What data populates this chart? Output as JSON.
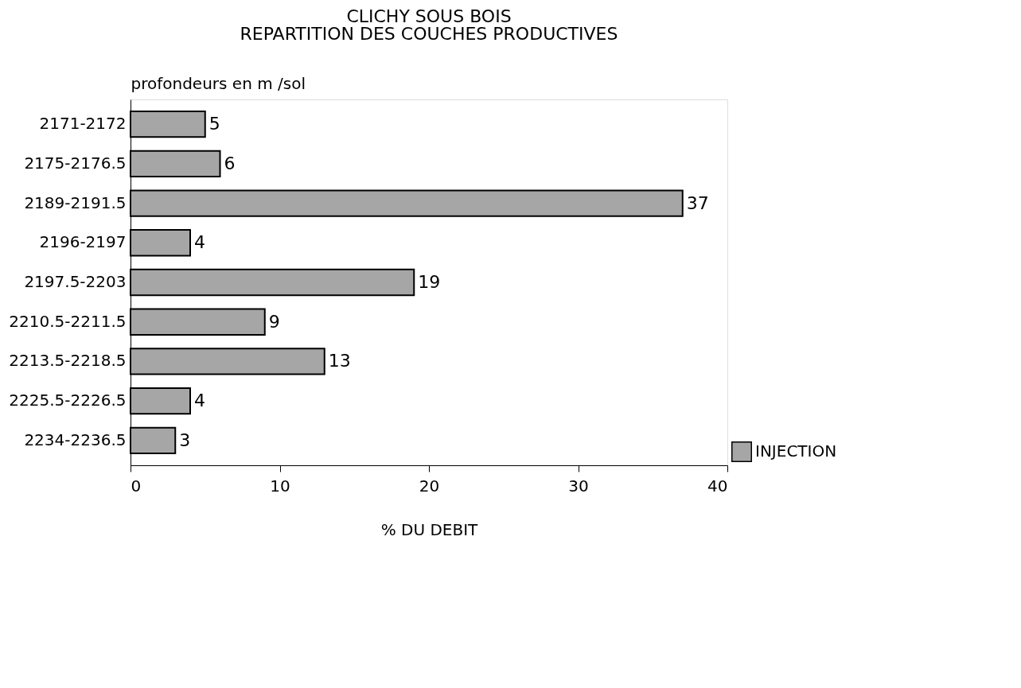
{
  "chart_data": {
    "type": "bar",
    "orientation": "horizontal",
    "title": "CLICHY  SOUS  BOIS",
    "subtitle": "REPARTITION DES COUCHES PRODUCTIVES",
    "ylabel": "profondeurs en m /sol",
    "xlabel": "% DU DEBIT",
    "categories": [
      "2171-2172",
      "2175-2176.5",
      "2189-2191.5",
      "2196-2197",
      "2197.5-2203",
      "2210.5-2211.5",
      "2213.5-2218.5",
      "2225.5-2226.5",
      "2234-2236.5"
    ],
    "series": [
      {
        "name": "INJECTION",
        "color": "#a6a6a6",
        "values": [
          5,
          6,
          37,
          4,
          19,
          9,
          13,
          4,
          3
        ]
      }
    ],
    "xlim": [
      0,
      40
    ],
    "xticks": [
      0,
      10,
      20,
      30,
      40
    ],
    "grid": false,
    "legend": "bottom right",
    "data_labels": true
  }
}
